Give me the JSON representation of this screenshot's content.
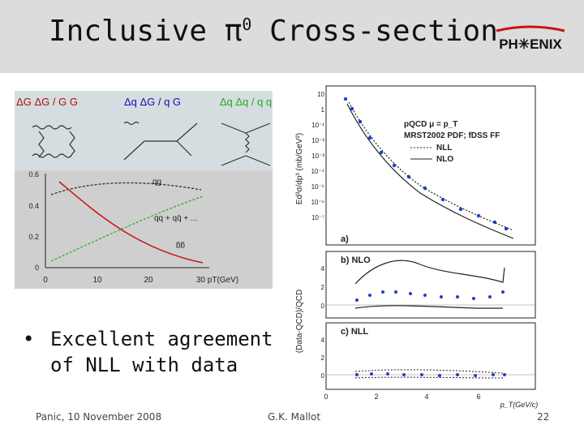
{
  "slide": {
    "title": "Inclusive π",
    "title_sup": "0",
    "title_rest": " Cross-section",
    "logo_text": "PH✳ENIX",
    "bullet": "Excellent agreement of NLL with data",
    "footer_left": "Panic, 10 November 2008",
    "footer_center": "G.K. Mallot",
    "footer_right": "22",
    "colors": {
      "header_bg": "#dcdcdc",
      "logo_red": "#cc1111"
    }
  },
  "left_figure": {
    "diagram_labels": [
      "ΔG ΔG / G G",
      "Δq ΔG / q G",
      "Δq Δq / q q"
    ],
    "curve_labels": [
      "qg",
      "qq + qq̄ + ...",
      "gg"
    ],
    "y_ticks": [
      "0.6",
      "0.4",
      "0.2",
      "0"
    ],
    "x_ticks": [
      "0",
      "10",
      "20",
      "30 pT(GeV)"
    ]
  },
  "right_figure": {
    "y_label_top": "Ed³σ/dp³ (mb/GeV²)",
    "y_label_bottom": "(Data-QCD)/QCD",
    "legend_lines": [
      "pQCD  μ = p_T",
      "MRST2002 PDF; fDSS FF",
      "NLL",
      "NLO"
    ],
    "panel_labels": [
      "a)",
      "b) NLO",
      "c) NLL"
    ],
    "top_y_ticks": [
      "10",
      "1",
      "10⁻¹",
      "10⁻²",
      "10⁻³",
      "10⁻⁴",
      "10⁻⁵",
      "10⁻⁶",
      "10⁻⁷"
    ],
    "mid_y_ticks": [
      "4",
      "2",
      "0"
    ],
    "bot_y_ticks": [
      "4",
      "2",
      "0"
    ],
    "x_ticks": [
      "0",
      "2",
      "4",
      "6"
    ],
    "x_label": "p_T(GeV/c)"
  }
}
